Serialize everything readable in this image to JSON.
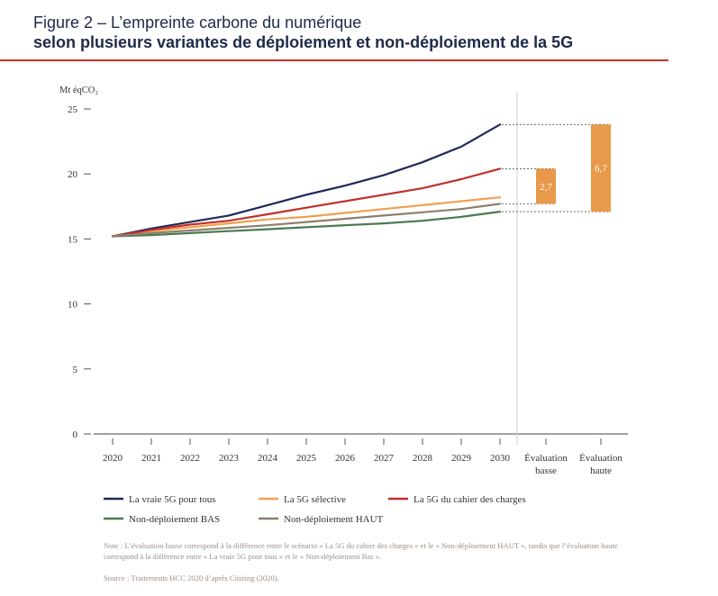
{
  "figure": {
    "title": "Figure 2 – L’empreinte carbone du numérique",
    "subtitle": "selon plusieurs variantes de déploiement et non-déploiement de la 5G"
  },
  "chart_data": {
    "type": "line",
    "title": "Figure 2 – L’empreinte carbone du numérique",
    "subtitle": "selon plusieurs variantes de déploiement et non-déploiement de la 5G",
    "ylabel": "Mt éqCO₂",
    "xlabel": "",
    "ylim": [
      0,
      25
    ],
    "yticks": [
      0,
      5,
      10,
      15,
      20,
      25
    ],
    "x": [
      2020,
      2021,
      2022,
      2023,
      2024,
      2025,
      2026,
      2027,
      2028,
      2029,
      2030
    ],
    "grid": false,
    "legend_position": "bottom",
    "series": [
      {
        "name": "La vraie 5G pour tous",
        "color": "#1f2a5a",
        "values": [
          15.2,
          15.8,
          16.3,
          16.8,
          17.6,
          18.4,
          19.1,
          19.9,
          20.9,
          22.1,
          23.8
        ]
      },
      {
        "name": "La 5G sélective",
        "color": "#f0a050",
        "values": [
          15.2,
          15.6,
          15.9,
          16.2,
          16.5,
          16.7,
          17.0,
          17.3,
          17.6,
          17.9,
          18.2
        ]
      },
      {
        "name": "La 5G du cahier des charges",
        "color": "#c0302a",
        "values": [
          15.2,
          15.7,
          16.1,
          16.4,
          16.9,
          17.4,
          17.9,
          18.4,
          18.9,
          19.6,
          20.4
        ]
      },
      {
        "name": "Non-déploiement BAS",
        "color": "#4a7a50",
        "values": [
          15.2,
          15.3,
          15.45,
          15.6,
          15.75,
          15.9,
          16.05,
          16.2,
          16.4,
          16.7,
          17.1
        ]
      },
      {
        "name": "Non-déploiement HAUT",
        "color": "#8c7f6e",
        "values": [
          15.2,
          15.45,
          15.65,
          15.85,
          16.05,
          16.3,
          16.55,
          16.8,
          17.05,
          17.3,
          17.7
        ]
      }
    ],
    "legend_rows": [
      [
        "La vraie 5G pour tous",
        "La 5G sélective",
        "La 5G du cahier des charges"
      ],
      [
        "Non-déploiement BAS",
        "Non-déploiement HAUT"
      ]
    ],
    "evaluations": [
      {
        "label_line1": "Évaluation",
        "label_line2": "basse",
        "value_label": "2,7",
        "from": 17.7,
        "to": 20.4,
        "color": "#e8994a"
      },
      {
        "label_line1": "Évaluation",
        "label_line2": "haute",
        "value_label": "6,7",
        "from": 17.1,
        "to": 23.8,
        "color": "#e8994a"
      }
    ]
  },
  "note": "Note : L’évaluation basse correspond à la différence entre le scénario « La 5G du cahier des charges » et le « Non-déploiement HAUT », tandis que l’évaluation haute correspond à la différence entre « La vraie 5G pour tous » et le « Non-déploiement Bas ».",
  "source": "Source : Traitements HCC 2020 d’après Citizing (2020)."
}
